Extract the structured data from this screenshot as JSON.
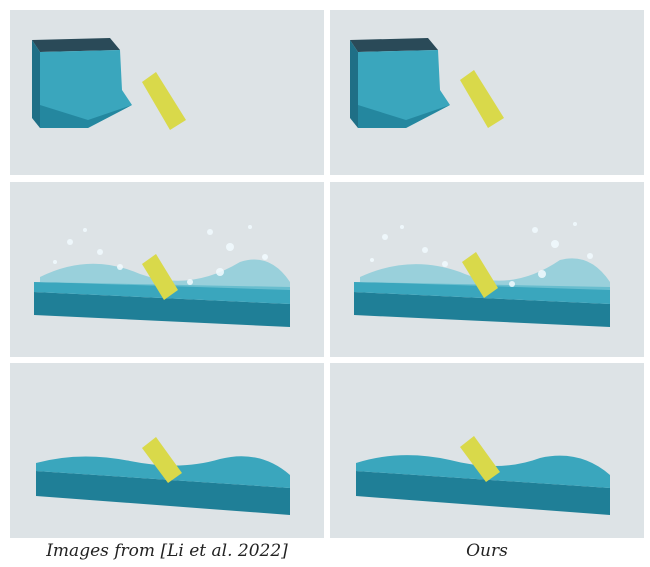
{
  "figure": {
    "captions": {
      "left": "Images from [Li et al. 2022]",
      "right": "Ours"
    },
    "colors": {
      "background": "#dde3e6",
      "water": "#3aa6bd",
      "water_dark": "#1f7f97",
      "plate": "#d9d94a",
      "splash": "#f2fbff"
    },
    "panels": [
      {
        "row": 1,
        "column": "left",
        "stage": "dam-break-start"
      },
      {
        "row": 1,
        "column": "right",
        "stage": "dam-break-start"
      },
      {
        "row": 2,
        "column": "left",
        "stage": "splash"
      },
      {
        "row": 2,
        "column": "right",
        "stage": "splash"
      },
      {
        "row": 3,
        "column": "left",
        "stage": "settled-waves"
      },
      {
        "row": 3,
        "column": "right",
        "stage": "settled-waves"
      }
    ]
  }
}
